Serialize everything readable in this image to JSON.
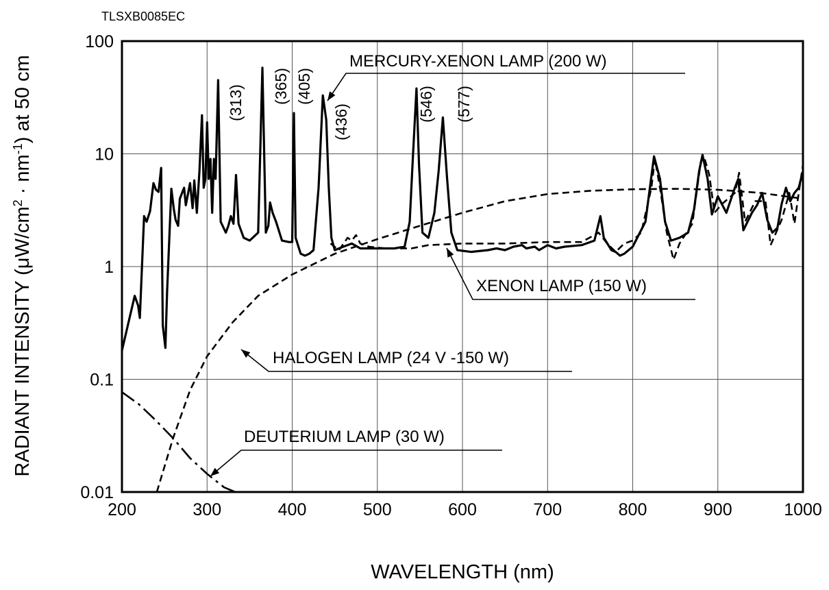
{
  "figure_code": "TLSXB0085EC",
  "chart_data": {
    "type": "line",
    "title": "",
    "xlabel": "WAVELENGTH (nm)",
    "ylabel": "RADIANT INTENSITY (μW/cm² · nm⁻¹) at 50 cm",
    "ylabel_parts": {
      "pre": "RADIANT INTENSITY (",
      "mu": "μ",
      "w_cm": "W/cm",
      "sup2": "2",
      "dot": " · ",
      "nm": "nm",
      "sup_neg1": "-1",
      "post": ") at 50 cm"
    },
    "xlim": [
      200,
      1000
    ],
    "ylim": [
      0.01,
      100
    ],
    "yscale": "log",
    "grid": true,
    "x_ticks": [
      200,
      300,
      400,
      500,
      600,
      700,
      800,
      900,
      1000
    ],
    "x_tick_labels": [
      "200",
      "300",
      "400",
      "500",
      "600",
      "700",
      "800",
      "900",
      "1000"
    ],
    "y_ticks": [
      0.01,
      0.1,
      1,
      10,
      100
    ],
    "y_tick_labels": [
      "0.01",
      "0.1",
      "1",
      "10",
      "100"
    ],
    "series": [
      {
        "name": "MERCURY-XENON LAMP (200 W)",
        "style": "solid",
        "color": "#000000",
        "points": [
          [
            200,
            0.18
          ],
          [
            215,
            0.55
          ],
          [
            219,
            0.45
          ],
          [
            221,
            0.35
          ],
          [
            226,
            2.8
          ],
          [
            229,
            2.5
          ],
          [
            233,
            3.1
          ],
          [
            237,
            5.5
          ],
          [
            240,
            4.8
          ],
          [
            243,
            4.6
          ],
          [
            246,
            7.5
          ],
          [
            248,
            0.3
          ],
          [
            251,
            0.19
          ],
          [
            253,
            0.6
          ],
          [
            258,
            4.9
          ],
          [
            261,
            3.2
          ],
          [
            263,
            2.6
          ],
          [
            266,
            2.3
          ],
          [
            268,
            4.0
          ],
          [
            273,
            5.0
          ],
          [
            275,
            3.5
          ],
          [
            280,
            5.5
          ],
          [
            283,
            3.3
          ],
          [
            285,
            5.8
          ],
          [
            288,
            3.0
          ],
          [
            291,
            7.0
          ],
          [
            294,
            22.0
          ],
          [
            296,
            5.0
          ],
          [
            298,
            6.0
          ],
          [
            300,
            19.0
          ],
          [
            302,
            6.0
          ],
          [
            304,
            9.0
          ],
          [
            306,
            3.0
          ],
          [
            308,
            9.0
          ],
          [
            310,
            6.0
          ],
          [
            313,
            45.0
          ],
          [
            316,
            2.5
          ],
          [
            322,
            2.0
          ],
          [
            325,
            2.3
          ],
          [
            328,
            2.8
          ],
          [
            331,
            2.4
          ],
          [
            334,
            6.5
          ],
          [
            337,
            2.4
          ],
          [
            343,
            1.8
          ],
          [
            350,
            1.7
          ],
          [
            360,
            2.0
          ],
          [
            365,
            58.0
          ],
          [
            369,
            2.0
          ],
          [
            372,
            2.3
          ],
          [
            374,
            3.7
          ],
          [
            377,
            3.0
          ],
          [
            381,
            2.5
          ],
          [
            388,
            1.7
          ],
          [
            396,
            1.65
          ],
          [
            400,
            1.65
          ],
          [
            402,
            23.0
          ],
          [
            404,
            1.8
          ],
          [
            410,
            1.3
          ],
          [
            415,
            1.25
          ],
          [
            420,
            1.3
          ],
          [
            425,
            1.4
          ],
          [
            431,
            5.0
          ],
          [
            436,
            33.0
          ],
          [
            440,
            20.0
          ],
          [
            443,
            5.0
          ],
          [
            446,
            1.8
          ],
          [
            450,
            1.4
          ],
          [
            460,
            1.5
          ],
          [
            470,
            1.6
          ],
          [
            480,
            1.45
          ],
          [
            500,
            1.45
          ],
          [
            520,
            1.45
          ],
          [
            532,
            1.5
          ],
          [
            538,
            2.5
          ],
          [
            542,
            10.0
          ],
          [
            546,
            38.0
          ],
          [
            549,
            8.0
          ],
          [
            553,
            2.0
          ],
          [
            560,
            1.8
          ],
          [
            567,
            3.0
          ],
          [
            572,
            7.0
          ],
          [
            577,
            21.0
          ],
          [
            582,
            6.0
          ],
          [
            587,
            2.0
          ],
          [
            594,
            1.4
          ],
          [
            610,
            1.35
          ],
          [
            630,
            1.4
          ],
          [
            640,
            1.45
          ],
          [
            650,
            1.4
          ],
          [
            660,
            1.5
          ],
          [
            670,
            1.55
          ],
          [
            675,
            1.45
          ],
          [
            685,
            1.5
          ],
          [
            690,
            1.4
          ],
          [
            700,
            1.55
          ],
          [
            710,
            1.45
          ],
          [
            720,
            1.5
          ],
          [
            740,
            1.55
          ],
          [
            755,
            1.7
          ],
          [
            762,
            2.8
          ],
          [
            766,
            1.8
          ],
          [
            775,
            1.4
          ],
          [
            780,
            1.35
          ],
          [
            785,
            1.25
          ],
          [
            790,
            1.3
          ],
          [
            800,
            1.5
          ],
          [
            815,
            2.5
          ],
          [
            825,
            9.5
          ],
          [
            832,
            6.0
          ],
          [
            838,
            2.5
          ],
          [
            845,
            1.7
          ],
          [
            855,
            1.8
          ],
          [
            865,
            2.0
          ],
          [
            872,
            3.2
          ],
          [
            878,
            7.0
          ],
          [
            882,
            9.8
          ],
          [
            888,
            6.0
          ],
          [
            893,
            2.9
          ],
          [
            900,
            4.2
          ],
          [
            910,
            3.0
          ],
          [
            920,
            5.0
          ],
          [
            924,
            6.0
          ],
          [
            930,
            2.1
          ],
          [
            940,
            3.0
          ],
          [
            946,
            3.5
          ],
          [
            952,
            4.5
          ],
          [
            958,
            2.6
          ],
          [
            964,
            2.0
          ],
          [
            970,
            2.2
          ],
          [
            975,
            3.6
          ],
          [
            980,
            5.0
          ],
          [
            985,
            3.8
          ],
          [
            990,
            4.5
          ],
          [
            995,
            5.0
          ],
          [
            1000,
            7.0
          ]
        ]
      },
      {
        "name": "XENON LAMP (150 W)",
        "style": "dashed",
        "color": "#000000",
        "points": [
          [
            445,
            1.6
          ],
          [
            455,
            1.4
          ],
          [
            465,
            1.8
          ],
          [
            470,
            1.7
          ],
          [
            475,
            1.9
          ],
          [
            480,
            1.6
          ],
          [
            490,
            1.5
          ],
          [
            510,
            1.45
          ],
          [
            540,
            1.45
          ],
          [
            560,
            1.55
          ],
          [
            600,
            1.6
          ],
          [
            650,
            1.6
          ],
          [
            700,
            1.65
          ],
          [
            740,
            1.65
          ],
          [
            760,
            2.0
          ],
          [
            770,
            1.6
          ],
          [
            780,
            1.35
          ],
          [
            790,
            1.6
          ],
          [
            800,
            1.7
          ],
          [
            810,
            2.0
          ],
          [
            822,
            5.0
          ],
          [
            826,
            9.0
          ],
          [
            832,
            5.0
          ],
          [
            840,
            2.0
          ],
          [
            848,
            1.15
          ],
          [
            855,
            1.6
          ],
          [
            870,
            2.4
          ],
          [
            880,
            8.5
          ],
          [
            884,
            9.3
          ],
          [
            890,
            6.5
          ],
          [
            896,
            3.0
          ],
          [
            905,
            3.6
          ],
          [
            920,
            4.5
          ],
          [
            925,
            6.8
          ],
          [
            932,
            2.5
          ],
          [
            944,
            3.8
          ],
          [
            956,
            3.8
          ],
          [
            962,
            1.55
          ],
          [
            975,
            2.6
          ],
          [
            984,
            4.5
          ],
          [
            990,
            2.4
          ],
          [
            995,
            4.5
          ],
          [
            1000,
            8.0
          ]
        ]
      },
      {
        "name": "HALOGEN LAMP (24 V -150 W)",
        "style": "dashed",
        "color": "#000000",
        "points": [
          [
            241,
            0.01
          ],
          [
            260,
            0.03
          ],
          [
            280,
            0.08
          ],
          [
            300,
            0.16
          ],
          [
            330,
            0.32
          ],
          [
            360,
            0.55
          ],
          [
            400,
            0.85
          ],
          [
            450,
            1.3
          ],
          [
            500,
            1.75
          ],
          [
            550,
            2.3
          ],
          [
            600,
            3.0
          ],
          [
            650,
            3.8
          ],
          [
            700,
            4.4
          ],
          [
            750,
            4.7
          ],
          [
            800,
            4.85
          ],
          [
            850,
            4.9
          ],
          [
            900,
            4.8
          ],
          [
            950,
            4.5
          ],
          [
            1000,
            4.0
          ]
        ]
      },
      {
        "name": "DEUTERIUM LAMP (30 W)",
        "style": "dashdot",
        "color": "#000000",
        "points": [
          [
            200,
            0.077
          ],
          [
            220,
            0.06
          ],
          [
            240,
            0.043
          ],
          [
            260,
            0.03
          ],
          [
            280,
            0.02
          ],
          [
            300,
            0.0145
          ],
          [
            320,
            0.011
          ],
          [
            333,
            0.01
          ]
        ]
      }
    ],
    "peak_labels": [
      {
        "text": "(313)",
        "wavelength": 313
      },
      {
        "text": "(365)",
        "wavelength": 365
      },
      {
        "text": "(405)",
        "wavelength": 405
      },
      {
        "text": "(436)",
        "wavelength": 436
      },
      {
        "text": "(546)",
        "wavelength": 546
      },
      {
        "text": "(577)",
        "wavelength": 577
      }
    ],
    "annotations": [
      {
        "text": "MERCURY-XENON LAMP (200 W)",
        "series": "MERCURY-XENON LAMP (200 W)"
      },
      {
        "text": "XENON LAMP (150 W)",
        "series": "XENON LAMP (150 W)"
      },
      {
        "text": "HALOGEN LAMP (24 V -150 W)",
        "series": "HALOGEN LAMP (24 V -150 W)"
      },
      {
        "text": "DEUTERIUM LAMP (30 W)",
        "series": "DEUTERIUM LAMP (30 W)"
      }
    ]
  }
}
